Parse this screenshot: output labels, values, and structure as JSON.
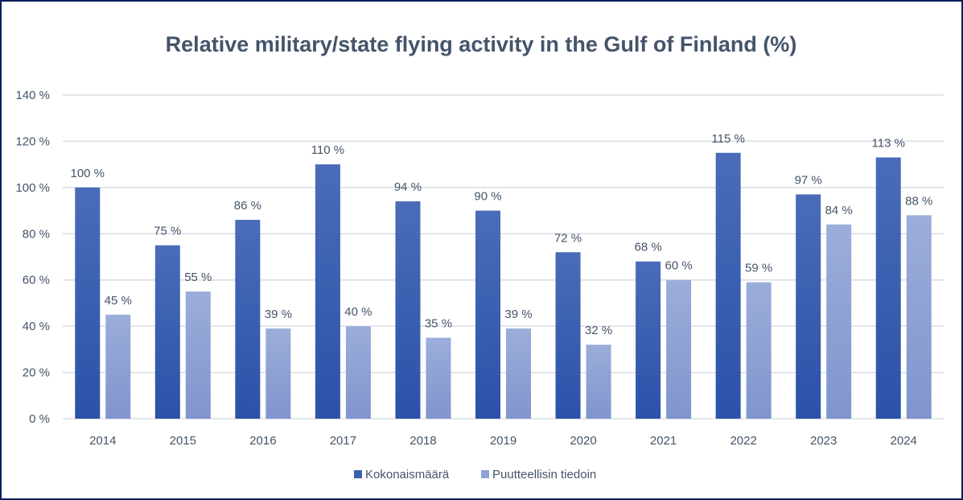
{
  "chart_data": {
    "type": "bar",
    "title": "Relative military/state flying activity in the Gulf of Finland (%)",
    "xlabel": "",
    "ylabel": "",
    "ylim": [
      0,
      140
    ],
    "yticks": [
      0,
      20,
      40,
      60,
      80,
      100,
      120,
      140
    ],
    "ytick_labels": [
      "0 %",
      "20 %",
      "40 %",
      "60 %",
      "80 %",
      "100 %",
      "120 %",
      "140 %"
    ],
    "grid": true,
    "legend_position": "bottom",
    "categories": [
      "2014",
      "2015",
      "2016",
      "2017",
      "2018",
      "2019",
      "2020",
      "2021",
      "2022",
      "2023",
      "2024"
    ],
    "series": [
      {
        "name": "Kokonaismäärä",
        "color": "#3a5fb0",
        "values": [
          100,
          75,
          86,
          110,
          94,
          90,
          72,
          68,
          115,
          97,
          113
        ],
        "labels": [
          "100 %",
          "75 %",
          "86 %",
          "110 %",
          "94 %",
          "90 %",
          "72 %",
          "68 %",
          "115 %",
          "97 %",
          "113 %"
        ]
      },
      {
        "name": "Puutteellisin tiedoin",
        "color": "#8ea3d6",
        "values": [
          45,
          55,
          39,
          40,
          35,
          39,
          32,
          60,
          59,
          84,
          88
        ],
        "labels": [
          "45 %",
          "55 %",
          "39 %",
          "40 %",
          "35 %",
          "39 %",
          "32 %",
          "60 %",
          "59 %",
          "84 %",
          "88 %"
        ]
      }
    ]
  }
}
